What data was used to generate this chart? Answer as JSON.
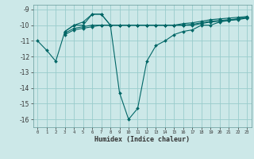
{
  "xlabel": "Humidex (Indice chaleur)",
  "bg_color": "#cce8e8",
  "grid_color": "#99cccc",
  "line_color": "#006666",
  "xlim": [
    -0.5,
    23.5
  ],
  "ylim": [
    -16.5,
    -8.7
  ],
  "yticks": [
    -9,
    -10,
    -11,
    -12,
    -13,
    -14,
    -15,
    -16
  ],
  "xticks": [
    0,
    1,
    2,
    3,
    4,
    5,
    6,
    7,
    8,
    9,
    10,
    11,
    12,
    13,
    14,
    15,
    16,
    17,
    18,
    19,
    20,
    21,
    22,
    23
  ],
  "series": [
    {
      "x": [
        0,
        1,
        2,
        3,
        4,
        5,
        6,
        7,
        8,
        9,
        10,
        11,
        12,
        13,
        14,
        15,
        16,
        17,
        18,
        19,
        20,
        21,
        22,
        23
      ],
      "y": [
        -11.0,
        -11.6,
        -12.3,
        -10.4,
        -10.0,
        -10.0,
        -9.3,
        -9.3,
        -10.0,
        -14.3,
        -16.0,
        -15.3,
        -12.3,
        -11.3,
        -11.0,
        -10.6,
        -10.4,
        -10.3,
        -10.0,
        -10.0,
        -9.8,
        -9.7,
        -9.6,
        -9.5
      ]
    },
    {
      "x": [
        3,
        4,
        5,
        6,
        7,
        8,
        9,
        10,
        11,
        12,
        13,
        14,
        15,
        16,
        17,
        18,
        19,
        20,
        21,
        22,
        23
      ],
      "y": [
        -10.4,
        -10.0,
        -9.8,
        -9.3,
        -9.3,
        -10.0,
        -10.0,
        -10.0,
        -10.0,
        -10.0,
        -10.0,
        -10.0,
        -10.0,
        -9.9,
        -9.85,
        -9.75,
        -9.65,
        -9.6,
        -9.55,
        -9.5,
        -9.45
      ]
    },
    {
      "x": [
        3,
        4,
        5,
        6,
        7,
        8,
        9,
        10,
        11,
        12,
        13,
        14,
        15,
        16,
        17,
        18,
        19,
        20,
        21,
        22,
        23
      ],
      "y": [
        -10.5,
        -10.2,
        -10.1,
        -10.0,
        -10.0,
        -10.0,
        -10.0,
        -10.0,
        -10.0,
        -10.0,
        -10.0,
        -10.0,
        -10.0,
        -10.0,
        -9.95,
        -9.85,
        -9.75,
        -9.7,
        -9.65,
        -9.6,
        -9.5
      ]
    },
    {
      "x": [
        3,
        4,
        5,
        6,
        7,
        8,
        9,
        10,
        11,
        12,
        13,
        14,
        15,
        16,
        17,
        18,
        19,
        20,
        21,
        22,
        23
      ],
      "y": [
        -10.6,
        -10.3,
        -10.2,
        -10.1,
        -10.0,
        -10.0,
        -10.0,
        -10.0,
        -10.0,
        -10.0,
        -10.0,
        -10.0,
        -10.0,
        -10.0,
        -10.0,
        -9.9,
        -9.8,
        -9.75,
        -9.7,
        -9.65,
        -9.55
      ]
    }
  ]
}
